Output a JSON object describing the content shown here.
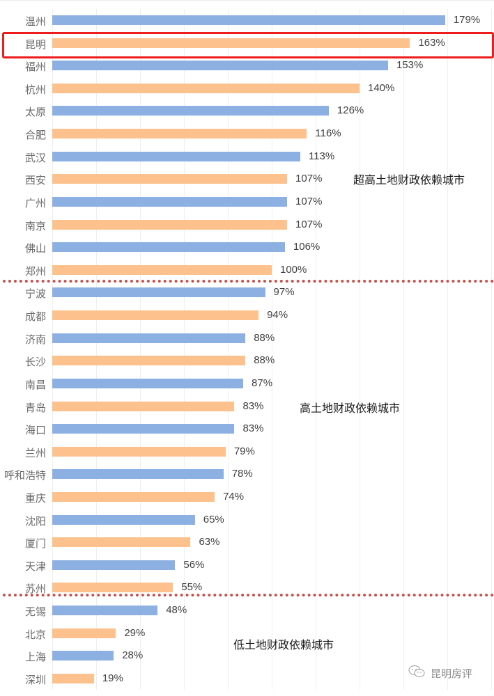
{
  "chart_data": {
    "type": "bar",
    "orientation": "horizontal",
    "title": "",
    "xlabel": "",
    "ylabel": "",
    "xlim": [
      0,
      200
    ],
    "grid": true,
    "grid_step": 20,
    "value_suffix": "%",
    "colors": {
      "blue": "#8db0e3",
      "orange": "#fcc18c",
      "separator": "#c4504c",
      "highlight": "#ee1c1c"
    },
    "categories": [
      "温州",
      "昆明",
      "福州",
      "杭州",
      "太原",
      "合肥",
      "武汉",
      "西安",
      "广州",
      "南京",
      "佛山",
      "郑州",
      "宁波",
      "成都",
      "济南",
      "长沙",
      "南昌",
      "青岛",
      "海口",
      "兰州",
      "呼和浩特",
      "重庆",
      "沈阳",
      "厦门",
      "天津",
      "苏州",
      "无锡",
      "北京",
      "上海",
      "深圳"
    ],
    "values": [
      179,
      163,
      153,
      140,
      126,
      116,
      113,
      107,
      107,
      107,
      106,
      100,
      97,
      94,
      88,
      88,
      87,
      83,
      83,
      79,
      78,
      74,
      65,
      63,
      56,
      55,
      48,
      29,
      28,
      19
    ],
    "labels": [
      "179%",
      "163%",
      "153%",
      "140%",
      "126%",
      "116%",
      "113%",
      "107%",
      "107%",
      "107%",
      "106%",
      "100%",
      "97%",
      "94%",
      "88%",
      "88%",
      "87%",
      "83%",
      "83%",
      "79%",
      "78%",
      "74%",
      "65%",
      "63%",
      "56%",
      "55%",
      "48%",
      "29%",
      "28%",
      "19%"
    ],
    "highlighted_category": "昆明",
    "annotations": [
      {
        "text": "超高土地财政依赖城市",
        "group_range": [
          "温州",
          "郑州"
        ]
      },
      {
        "text": "高土地财政依赖城市",
        "group_range": [
          "宁波",
          "苏州"
        ]
      },
      {
        "text": "低土地财政依赖城市",
        "group_range": [
          "无锡",
          "深圳"
        ]
      }
    ]
  },
  "groups": {
    "super_high": "超高土地财政依赖城市",
    "high": "高土地财政依赖城市",
    "low": "低土地财政依赖城市"
  },
  "watermark": {
    "icon": "wechat-icon",
    "text": "昆明房评"
  }
}
